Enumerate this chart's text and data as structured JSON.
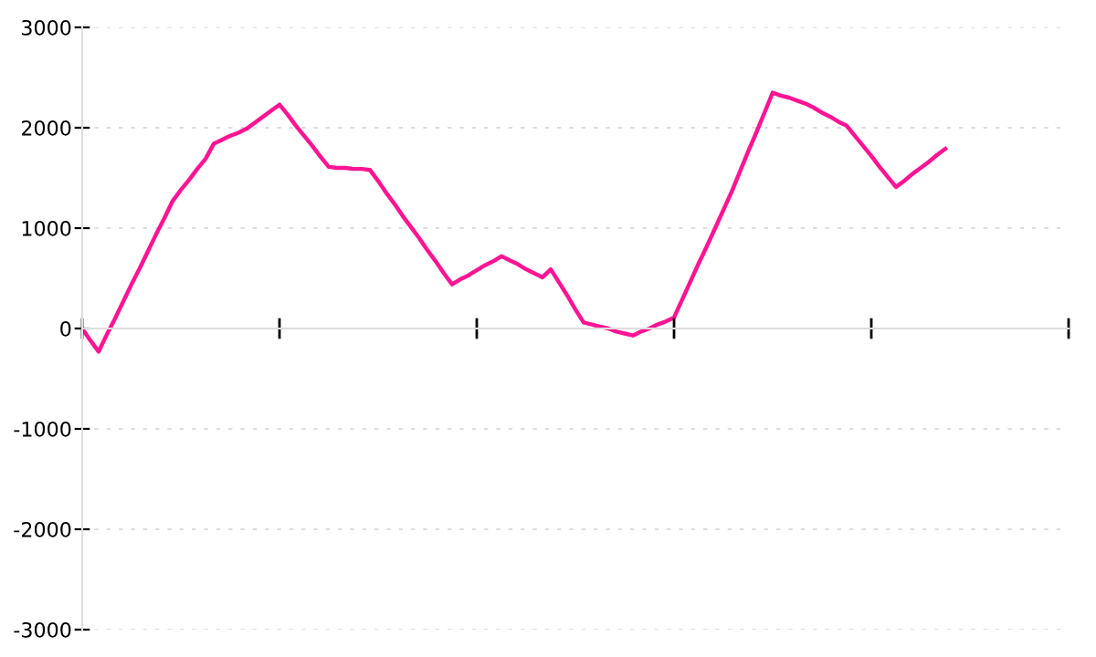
{
  "chart_data": {
    "type": "line",
    "categories": [
      null,
      null,
      null,
      null,
      null,
      null,
      null,
      null,
      null,
      null,
      null,
      null,
      null,
      null,
      null,
      null,
      null,
      null,
      null,
      null,
      null,
      null,
      null,
      null,
      null,
      null,
      null,
      null,
      null,
      null,
      null,
      null,
      null,
      null,
      null,
      null,
      null,
      null,
      null,
      null,
      null,
      null,
      null,
      null,
      null,
      null,
      null,
      null,
      null,
      null,
      null,
      null,
      null,
      null,
      null,
      null,
      null,
      null,
      null,
      null,
      null,
      null,
      null,
      null,
      null,
      null,
      null,
      null,
      null,
      null,
      null,
      null,
      null,
      null,
      null,
      null,
      null,
      null,
      null,
      null,
      null,
      null,
      null,
      null,
      null,
      null,
      null,
      null,
      null,
      null,
      null,
      null,
      null,
      null,
      null,
      null,
      null,
      null,
      null,
      null,
      null,
      null,
      null,
      null,
      null,
      null,
      null,
      null,
      null,
      null,
      null,
      null,
      null,
      null,
      null,
      null,
      null,
      null,
      null,
      null,
      null
    ],
    "series": [
      {
        "color": "#ff1493",
        "values": [
          0,
          -120,
          -230,
          -60,
          100,
          270,
          440,
          600,
          770,
          940,
          1100,
          1270,
          1380,
          1480,
          1590,
          1690,
          1840,
          1880,
          1920,
          1950,
          1990,
          2050,
          2110,
          2170,
          2230,
          2130,
          2020,
          1920,
          1820,
          1710,
          1610,
          1600,
          1600,
          1590,
          1590,
          1580,
          1470,
          1350,
          1240,
          1120,
          1010,
          900,
          780,
          670,
          550,
          440,
          490,
          530,
          580,
          630,
          670,
          720,
          680,
          640,
          590,
          550,
          510,
          590,
          460,
          330,
          190,
          60,
          40,
          20,
          0,
          -30,
          -50,
          -70,
          -30,
          0,
          40,
          70,
          110,
          290,
          470,
          650,
          820,
          1000,
          1180,
          1360,
          1560,
          1760,
          1950,
          2150,
          2350,
          2320,
          2300,
          2270,
          2240,
          2200,
          2150,
          2110,
          2060,
          2020,
          1920,
          1820,
          1720,
          1610,
          1510,
          1410,
          1470,
          1540,
          1600,
          1660,
          1730,
          1790,
          null,
          null,
          null,
          null,
          null,
          null,
          null,
          null,
          null,
          null,
          null,
          null,
          null,
          null,
          null
        ]
      }
    ],
    "ylim": [
      -3000,
      3000
    ],
    "yticks": [
      -3000,
      -2000,
      -1000,
      0,
      1000,
      2000,
      3000
    ],
    "grid": "y",
    "tick_labels": "y",
    "marker": "none",
    "line_style": "solid"
  }
}
